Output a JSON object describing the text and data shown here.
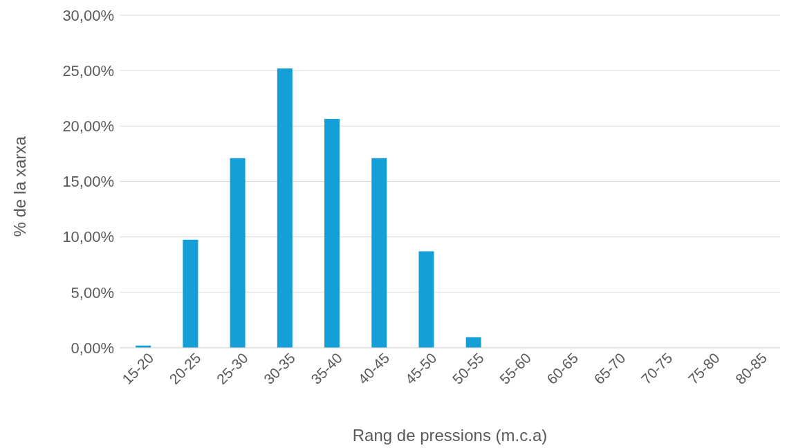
{
  "chart_data": {
    "type": "bar",
    "xlabel": "Rang de pressions (m.c.a)",
    "ylabel": "% de la xarxa",
    "categories": [
      "15-20",
      "20-25",
      "25-30",
      "30-35",
      "35-40",
      "40-45",
      "45-50",
      "50-55",
      "55-60",
      "60-65",
      "65-70",
      "70-75",
      "75-80",
      "80-85"
    ],
    "values": [
      0.2,
      9.75,
      17.1,
      25.2,
      20.65,
      17.1,
      8.7,
      0.95,
      0,
      0,
      0,
      0,
      0,
      0
    ],
    "color": "#159fd8",
    "ylim": [
      0,
      30
    ],
    "yticks": [
      {
        "value": 0,
        "label": "0,00%"
      },
      {
        "value": 5,
        "label": "5,00%"
      },
      {
        "value": 10,
        "label": "10,00%"
      },
      {
        "value": 15,
        "label": "15,00%"
      },
      {
        "value": 20,
        "label": "20,00%"
      },
      {
        "value": 25,
        "label": "25,00%"
      },
      {
        "value": 30,
        "label": "30,00%"
      }
    ],
    "grid": "y"
  }
}
